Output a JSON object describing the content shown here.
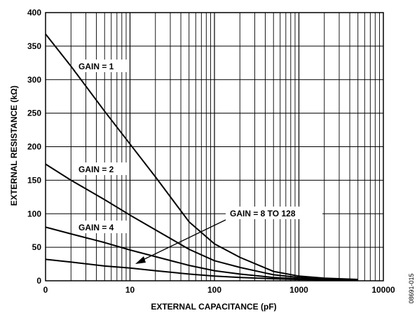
{
  "chart_data": {
    "type": "line",
    "xlabel": "EXTERNAL CAPACITANCE (pF)",
    "ylabel": "EXTERNAL RESISTANCE (kΩ)",
    "x_scale": "log",
    "xlim": [
      1,
      10000
    ],
    "ylim": [
      0,
      400
    ],
    "x_ticks": [
      1,
      10,
      100,
      1000,
      10000
    ],
    "x_tick_labels": [
      "0",
      "10",
      "100",
      "1000",
      "10000"
    ],
    "y_ticks": [
      0,
      50,
      100,
      150,
      200,
      250,
      300,
      350,
      400
    ],
    "y_tick_labels": [
      "0",
      "50",
      "100",
      "150",
      "200",
      "250",
      "300",
      "350",
      "400"
    ],
    "grid": true,
    "series": [
      {
        "name": "GAIN = 1",
        "x": [
          1,
          2,
          5,
          10,
          20,
          50,
          100,
          200,
          500,
          1000,
          2000,
          5000
        ],
        "y": [
          368,
          320,
          253,
          204,
          155,
          88,
          55,
          35,
          14,
          7,
          4,
          2
        ]
      },
      {
        "name": "GAIN = 2",
        "x": [
          1,
          2,
          5,
          10,
          20,
          50,
          100,
          200,
          500,
          1000,
          2000,
          5000
        ],
        "y": [
          174,
          150,
          121,
          98,
          76,
          47,
          30,
          20,
          9,
          5,
          3,
          2
        ]
      },
      {
        "name": "GAIN = 4",
        "x": [
          1,
          2,
          5,
          10,
          20,
          50,
          100,
          200,
          500,
          1000,
          2000,
          5000
        ],
        "y": [
          80,
          70,
          57,
          46,
          36,
          23,
          15,
          10,
          5,
          3,
          2,
          1
        ]
      },
      {
        "name": "GAIN = 8 TO 128",
        "x": [
          1,
          2,
          5,
          10,
          20,
          50,
          100,
          200,
          500,
          1000,
          2000,
          5000
        ],
        "y": [
          32,
          28,
          22,
          19,
          15,
          10,
          7,
          5,
          3,
          2,
          1.5,
          1
        ]
      }
    ],
    "annotations": [
      "GAIN = 1",
      "GAIN = 2",
      "GAIN = 4",
      "GAIN = 8 TO 128"
    ]
  },
  "figure_code": "08691-015"
}
